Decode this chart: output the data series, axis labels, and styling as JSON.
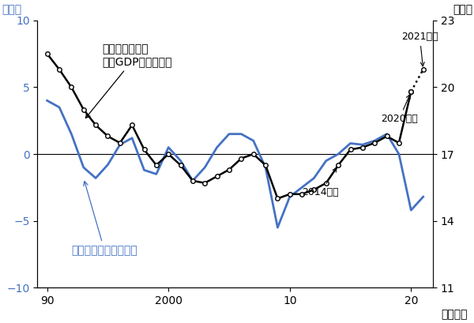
{
  "bg_color": "#ffffff",
  "years_gap": [
    1990,
    1991,
    1992,
    1993,
    1994,
    1995,
    1996,
    1997,
    1998,
    1999,
    2000,
    2001,
    2002,
    2003,
    2004,
    2005,
    2006,
    2007,
    2008,
    2009,
    2010,
    2011,
    2012,
    2013,
    2014,
    2015,
    2016,
    2017,
    2018,
    2019,
    2020,
    2021
  ],
  "gap_values": [
    4.0,
    3.5,
    1.5,
    -1.0,
    -1.8,
    -0.8,
    0.7,
    1.2,
    -1.2,
    -1.5,
    0.5,
    -0.5,
    -2.0,
    -1.0,
    0.5,
    1.5,
    1.5,
    1.0,
    -1.0,
    -5.5,
    -3.2,
    -2.5,
    -1.8,
    -0.5,
    0.0,
    0.8,
    0.7,
    1.0,
    1.5,
    0.0,
    -4.2,
    -3.2
  ],
  "years_tax": [
    1990,
    1991,
    1992,
    1993,
    1994,
    1995,
    1996,
    1997,
    1998,
    1999,
    2000,
    2001,
    2002,
    2003,
    2004,
    2005,
    2006,
    2007,
    2008,
    2009,
    2010,
    2011,
    2012,
    2013,
    2014,
    2015,
    2016,
    2017,
    2018,
    2019,
    2020
  ],
  "tax_values_right": [
    21.5,
    20.8,
    20.0,
    19.0,
    18.3,
    17.8,
    17.5,
    18.3,
    17.2,
    16.5,
    17.0,
    16.5,
    15.8,
    15.7,
    16.0,
    16.3,
    16.8,
    17.0,
    16.5,
    15.0,
    15.2,
    15.2,
    15.4,
    15.7,
    16.5,
    17.2,
    17.3,
    17.5,
    17.8,
    17.5,
    19.8
  ],
  "tax_dotted_years": [
    2020,
    2021
  ],
  "tax_dotted_values": [
    19.8,
    20.8
  ],
  "gap_color": "#4472c4",
  "tax_color": "#000000",
  "left_ylim": [
    -10,
    10
  ],
  "right_ylim": [
    11,
    23
  ],
  "left_yticks": [
    -10,
    -5,
    0,
    5,
    10
  ],
  "right_yticks": [
    11,
    14,
    17,
    20,
    23
  ],
  "left_ylabel": "(%)",
  "right_ylabel": "(%)",
  "xlabel_label": "(年度)",
  "label_pct_left": "(％)",
  "label_pct_right": "(％)",
  "label_nendo": "(年度)",
  "ann_tax_text": "国・地方の税収\n（対gdp比、右軸）",
  "ann_gap_text": "需給ギャップ（左軸）",
  "ann_2014_text": "2014年度",
  "ann_2020_text": "2020年度",
  "ann_2021_text": "2021年度"
}
